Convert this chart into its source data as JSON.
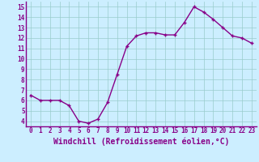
{
  "x": [
    0,
    1,
    2,
    3,
    4,
    5,
    6,
    7,
    8,
    9,
    10,
    11,
    12,
    13,
    14,
    15,
    16,
    17,
    18,
    19,
    20,
    21,
    22,
    23
  ],
  "y": [
    6.5,
    6.0,
    6.0,
    6.0,
    5.5,
    4.0,
    3.8,
    4.2,
    5.8,
    8.5,
    11.2,
    12.2,
    12.5,
    12.5,
    12.3,
    12.3,
    13.5,
    15.0,
    14.5,
    13.8,
    13.0,
    12.2,
    12.0,
    11.5
  ],
  "line_color": "#880088",
  "marker": "+",
  "bg_color": "#cceeff",
  "grid_color": "#99cccc",
  "xlabel": "Windchill (Refroidissement éolien,°C)",
  "ylim": [
    3.5,
    15.5
  ],
  "xlim": [
    -0.5,
    23.5
  ],
  "yticks": [
    4,
    5,
    6,
    7,
    8,
    9,
    10,
    11,
    12,
    13,
    14,
    15
  ],
  "xticks": [
    0,
    1,
    2,
    3,
    4,
    5,
    6,
    7,
    8,
    9,
    10,
    11,
    12,
    13,
    14,
    15,
    16,
    17,
    18,
    19,
    20,
    21,
    22,
    23
  ],
  "axis_color": "#880088",
  "tick_fontsize": 5.5,
  "xlabel_fontsize": 7.0,
  "line_width": 1.0,
  "marker_size": 3.5,
  "marker_edge_width": 1.0
}
